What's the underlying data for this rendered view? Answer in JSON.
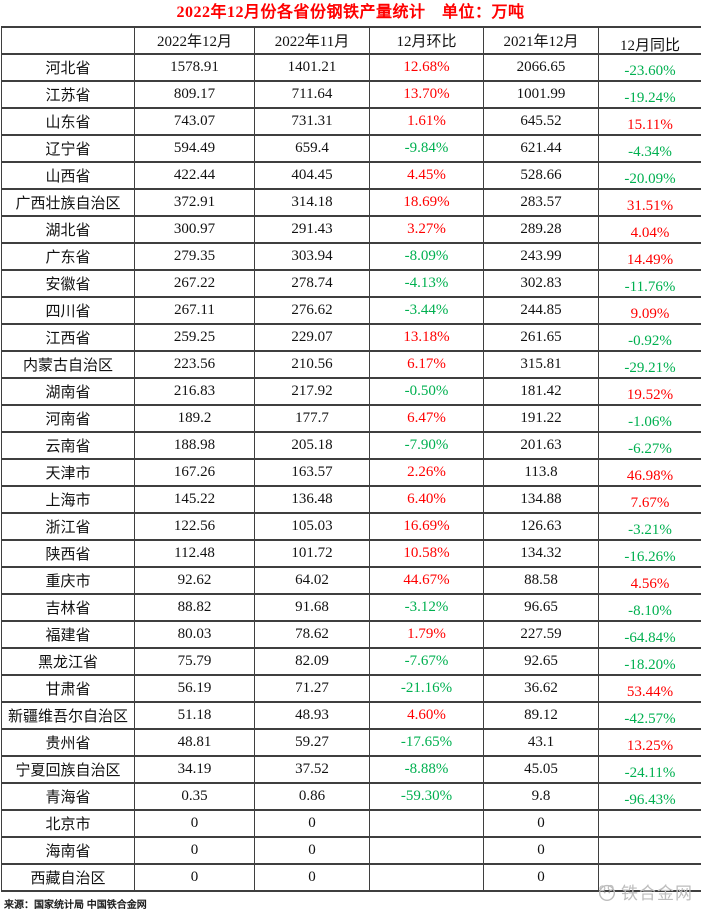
{
  "title": "2022年12月份各省份钢铁产量统计　单位：万吨",
  "colors": {
    "increase_red": "#ff0000",
    "decrease_green": "#00b050",
    "title_red": "#ff0000",
    "border": "#3f3f3f",
    "watermark_gray": "#bdbdbd"
  },
  "table": {
    "headers": [
      "",
      "2022年12月",
      "2022年11月",
      "12月环比",
      "2021年12月",
      "12月同比"
    ],
    "rows": [
      {
        "province": "河北省",
        "dec_2022": "1578.91",
        "nov_2022": "1401.21",
        "mom": "12.68%",
        "dec_2021": "2066.65",
        "yoy": "-23.60%"
      },
      {
        "province": "江苏省",
        "dec_2022": "809.17",
        "nov_2022": "711.64",
        "mom": "13.70%",
        "dec_2021": "1001.99",
        "yoy": "-19.24%"
      },
      {
        "province": "山东省",
        "dec_2022": "743.07",
        "nov_2022": "731.31",
        "mom": "1.61%",
        "dec_2021": "645.52",
        "yoy": "15.11%"
      },
      {
        "province": "辽宁省",
        "dec_2022": "594.49",
        "nov_2022": "659.4",
        "mom": "-9.84%",
        "dec_2021": "621.44",
        "yoy": "-4.34%"
      },
      {
        "province": "山西省",
        "dec_2022": "422.44",
        "nov_2022": "404.45",
        "mom": "4.45%",
        "dec_2021": "528.66",
        "yoy": "-20.09%"
      },
      {
        "province": "广西壮族自治区",
        "dec_2022": "372.91",
        "nov_2022": "314.18",
        "mom": "18.69%",
        "dec_2021": "283.57",
        "yoy": "31.51%"
      },
      {
        "province": "湖北省",
        "dec_2022": "300.97",
        "nov_2022": "291.43",
        "mom": "3.27%",
        "dec_2021": "289.28",
        "yoy": "4.04%"
      },
      {
        "province": "广东省",
        "dec_2022": "279.35",
        "nov_2022": "303.94",
        "mom": "-8.09%",
        "dec_2021": "243.99",
        "yoy": "14.49%"
      },
      {
        "province": "安徽省",
        "dec_2022": "267.22",
        "nov_2022": "278.74",
        "mom": "-4.13%",
        "dec_2021": "302.83",
        "yoy": "-11.76%"
      },
      {
        "province": "四川省",
        "dec_2022": "267.11",
        "nov_2022": "276.62",
        "mom": "-3.44%",
        "dec_2021": "244.85",
        "yoy": "9.09%"
      },
      {
        "province": "江西省",
        "dec_2022": "259.25",
        "nov_2022": "229.07",
        "mom": "13.18%",
        "dec_2021": "261.65",
        "yoy": "-0.92%"
      },
      {
        "province": "内蒙古自治区",
        "dec_2022": "223.56",
        "nov_2022": "210.56",
        "mom": "6.17%",
        "dec_2021": "315.81",
        "yoy": "-29.21%"
      },
      {
        "province": "湖南省",
        "dec_2022": "216.83",
        "nov_2022": "217.92",
        "mom": "-0.50%",
        "dec_2021": "181.42",
        "yoy": "19.52%"
      },
      {
        "province": "河南省",
        "dec_2022": "189.2",
        "nov_2022": "177.7",
        "mom": "6.47%",
        "dec_2021": "191.22",
        "yoy": "-1.06%"
      },
      {
        "province": "云南省",
        "dec_2022": "188.98",
        "nov_2022": "205.18",
        "mom": "-7.90%",
        "dec_2021": "201.63",
        "yoy": "-6.27%"
      },
      {
        "province": "天津市",
        "dec_2022": "167.26",
        "nov_2022": "163.57",
        "mom": "2.26%",
        "dec_2021": "113.8",
        "yoy": "46.98%"
      },
      {
        "province": "上海市",
        "dec_2022": "145.22",
        "nov_2022": "136.48",
        "mom": "6.40%",
        "dec_2021": "134.88",
        "yoy": "7.67%"
      },
      {
        "province": "浙江省",
        "dec_2022": "122.56",
        "nov_2022": "105.03",
        "mom": "16.69%",
        "dec_2021": "126.63",
        "yoy": "-3.21%"
      },
      {
        "province": "陕西省",
        "dec_2022": "112.48",
        "nov_2022": "101.72",
        "mom": "10.58%",
        "dec_2021": "134.32",
        "yoy": "-16.26%"
      },
      {
        "province": "重庆市",
        "dec_2022": "92.62",
        "nov_2022": "64.02",
        "mom": "44.67%",
        "dec_2021": "88.58",
        "yoy": "4.56%"
      },
      {
        "province": "吉林省",
        "dec_2022": "88.82",
        "nov_2022": "91.68",
        "mom": "-3.12%",
        "dec_2021": "96.65",
        "yoy": "-8.10%"
      },
      {
        "province": "福建省",
        "dec_2022": "80.03",
        "nov_2022": "78.62",
        "mom": "1.79%",
        "dec_2021": "227.59",
        "yoy": "-64.84%"
      },
      {
        "province": "黑龙江省",
        "dec_2022": "75.79",
        "nov_2022": "82.09",
        "mom": "-7.67%",
        "dec_2021": "92.65",
        "yoy": "-18.20%"
      },
      {
        "province": "甘肃省",
        "dec_2022": "56.19",
        "nov_2022": "71.27",
        "mom": "-21.16%",
        "dec_2021": "36.62",
        "yoy": "53.44%"
      },
      {
        "province": "新疆维吾尔自治区",
        "dec_2022": "51.18",
        "nov_2022": "48.93",
        "mom": "4.60%",
        "dec_2021": "89.12",
        "yoy": "-42.57%"
      },
      {
        "province": "贵州省",
        "dec_2022": "48.81",
        "nov_2022": "59.27",
        "mom": "-17.65%",
        "dec_2021": "43.1",
        "yoy": "13.25%"
      },
      {
        "province": "宁夏回族自治区",
        "dec_2022": "34.19",
        "nov_2022": "37.52",
        "mom": "-8.88%",
        "dec_2021": "45.05",
        "yoy": "-24.11%"
      },
      {
        "province": "青海省",
        "dec_2022": "0.35",
        "nov_2022": "0.86",
        "mom": "-59.30%",
        "dec_2021": "9.8",
        "yoy": "-96.43%"
      },
      {
        "province": "北京市",
        "dec_2022": "0",
        "nov_2022": "0",
        "mom": "",
        "dec_2021": "0",
        "yoy": ""
      },
      {
        "province": "海南省",
        "dec_2022": "0",
        "nov_2022": "0",
        "mom": "",
        "dec_2021": "0",
        "yoy": ""
      },
      {
        "province": "西藏自治区",
        "dec_2022": "0",
        "nov_2022": "0",
        "mom": "",
        "dec_2021": "0",
        "yoy": ""
      }
    ]
  },
  "footer": {
    "source": "来源：国家统计局  中国铁合金网"
  },
  "watermark": {
    "text": "铁合金网"
  }
}
